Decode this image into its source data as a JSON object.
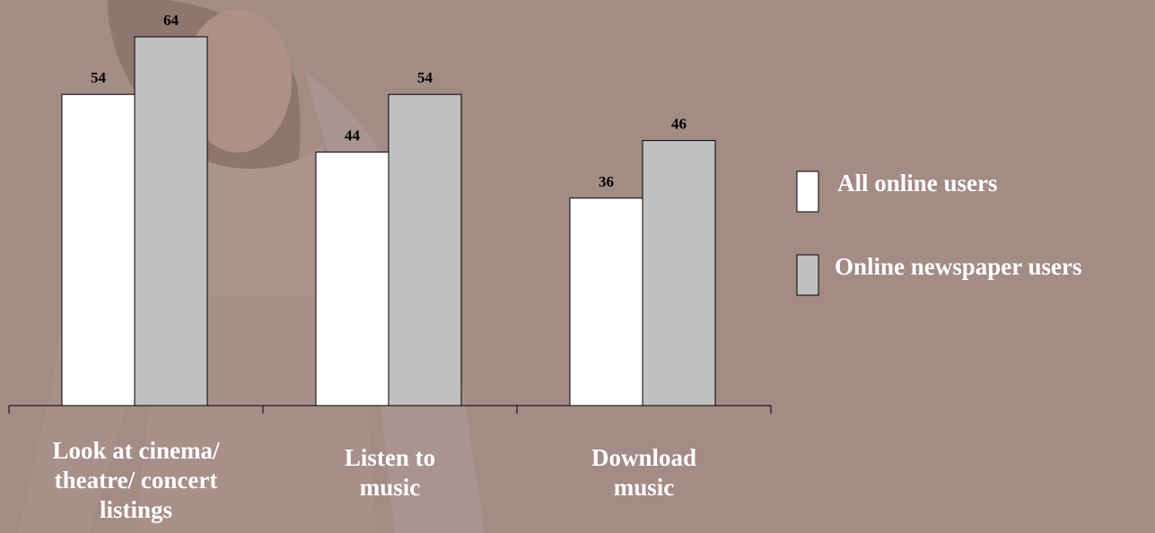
{
  "chart_data": {
    "type": "bar",
    "categories": [
      "Look at cinema/ theatre/ concert listings",
      "Listen to music",
      "Download music"
    ],
    "category_lines": [
      [
        "Look at cinema/",
        "theatre/ concert",
        "listings"
      ],
      [
        "Listen to",
        "music"
      ],
      [
        "Download",
        "music"
      ]
    ],
    "series": [
      {
        "name": "All online users",
        "values": [
          54,
          44,
          36
        ],
        "color": "#ffffff"
      },
      {
        "name": "Online newspaper users",
        "values": [
          64,
          54,
          46
        ],
        "color": "#c0c0c0"
      }
    ],
    "data_labels": [
      [
        "54",
        "44",
        "36"
      ],
      [
        "64",
        "54",
        "46"
      ]
    ],
    "legend_position": "right",
    "grid": false,
    "ylim": [
      0,
      64
    ]
  },
  "colors": {
    "background": "#a38b86",
    "text": "#ffffff",
    "bar_outline": "#000000",
    "axis": "#000000"
  }
}
